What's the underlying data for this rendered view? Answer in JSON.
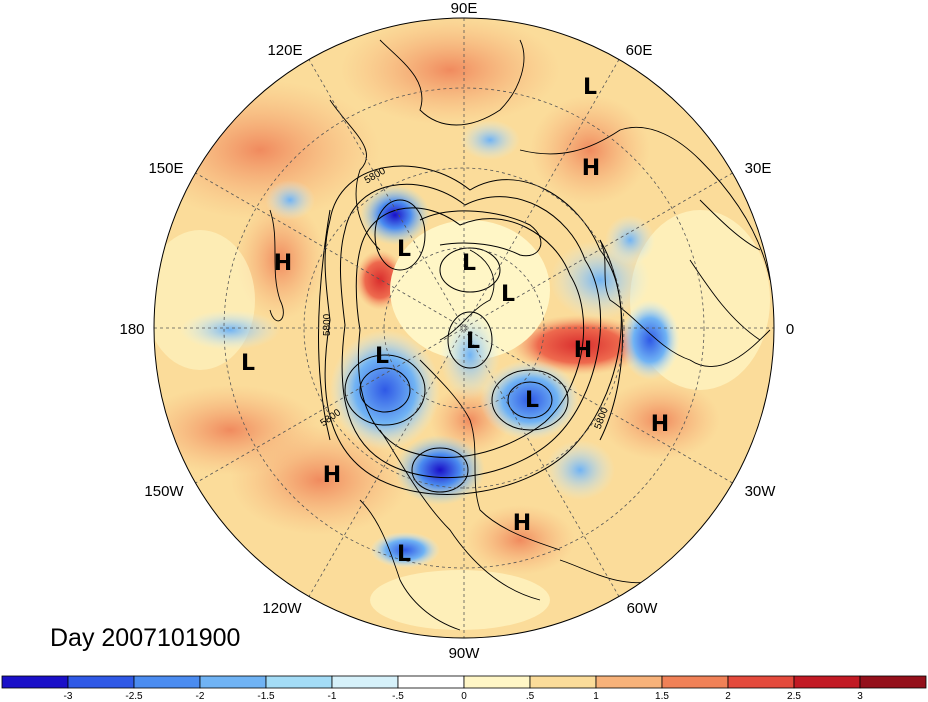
{
  "date_label": "Day 2007101900",
  "longitude_labels": [
    "90E",
    "60E",
    "30E",
    "0",
    "30W",
    "60W",
    "90W",
    "120W",
    "150W",
    "180",
    "150E",
    "120E"
  ],
  "pressure_centers": [
    {
      "type": "L",
      "lon_hint": "60E-ne"
    },
    {
      "type": "H",
      "lon_hint": "45E"
    },
    {
      "type": "L",
      "lon_hint": "140E"
    },
    {
      "type": "L",
      "lon_hint": "pole-a"
    },
    {
      "type": "L",
      "lon_hint": "pole-b"
    },
    {
      "type": "H",
      "lon_hint": "160E"
    },
    {
      "type": "L",
      "lon_hint": "pole-c"
    },
    {
      "type": "L",
      "lon_hint": "pole-d"
    },
    {
      "type": "H",
      "lon_hint": "10W"
    },
    {
      "type": "L",
      "lon_hint": "175W"
    },
    {
      "type": "L",
      "lon_hint": "40W"
    },
    {
      "type": "H",
      "lon_hint": "20W"
    },
    {
      "type": "H",
      "lon_hint": "150W"
    },
    {
      "type": "H",
      "lon_hint": "70W"
    },
    {
      "type": "L",
      "lon_hint": "110W"
    }
  ],
  "contour_labels": [
    "5800",
    "5800",
    "5800",
    "5800"
  ],
  "colorbar": {
    "ticks": [
      "-3",
      "-2.5",
      "-2",
      "-1.5",
      "-1",
      "-.5",
      "0",
      ".5",
      "1",
      "1.5",
      "2",
      "2.5",
      "3"
    ],
    "colors": [
      "#1a10c8",
      "#2f59e6",
      "#4b8cf0",
      "#70b3f4",
      "#a4dcf6",
      "#d6f1fa",
      "#ffffff",
      "#fff6c6",
      "#fbdc9a",
      "#f7b27a",
      "#f08157",
      "#e44a3c",
      "#c21a24",
      "#94101b"
    ]
  }
}
